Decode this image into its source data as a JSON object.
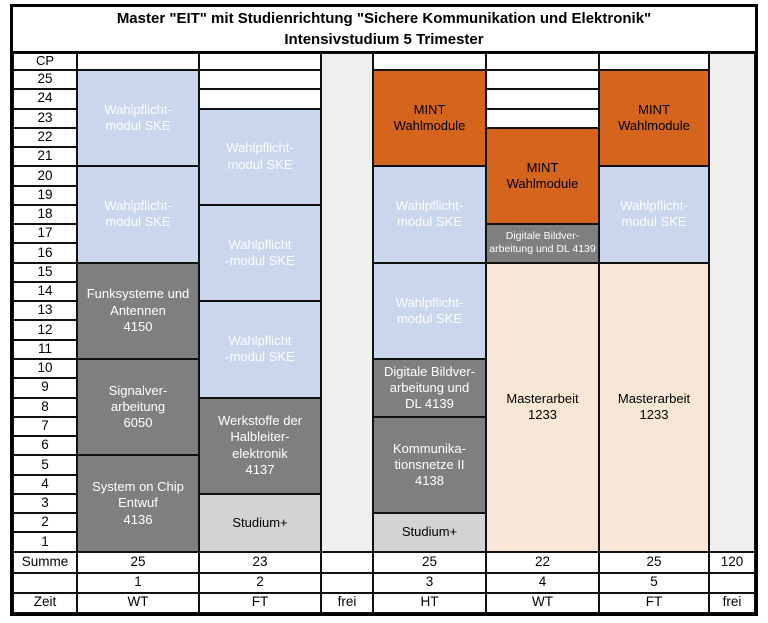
{
  "title": {
    "line1": "Master \"EIT\" mit Studienrichtung \"Sichere Kommunikation und Elektronik\"",
    "line2": "Intensivstudium 5 Trimester"
  },
  "axis": {
    "cp_label": "CP",
    "cp_ticks": [
      "25",
      "24",
      "23",
      "22",
      "21",
      "20",
      "19",
      "18",
      "17",
      "16",
      "15",
      "14",
      "13",
      "12",
      "11",
      "10",
      "9",
      "8",
      "7",
      "6",
      "5",
      "4",
      "3",
      "2",
      "1"
    ]
  },
  "footer_labels": {
    "summe": "Summe",
    "zeit": "Zeit"
  },
  "colors": {
    "orange": "#D5641C",
    "blue": "#C9D6EC",
    "darkgray": "#7F7F7F",
    "lightgray": "#D3D3D3",
    "cream": "#F8E7D6",
    "frei": "#EFEFED"
  },
  "chart_data": {
    "type": "bar",
    "subtype": "stacked-curriculum-schedule",
    "title": "Master \"EIT\" mit Studienrichtung \"Sichere Kommunikation und Elektronik\" — Intensivstudium 5 Trimester",
    "ylabel": "CP",
    "ylim": [
      0,
      25
    ],
    "grand_total_cp": "120",
    "columns": [
      {
        "trimester": "1",
        "zeit": "WT",
        "summe": "25",
        "empty_top": 0,
        "blocks": [
          {
            "lines": [
              "Wahlpflicht-",
              "modul SKE"
            ],
            "cp": 5,
            "color": "blue",
            "small": false
          },
          {
            "lines": [
              "Wahlpflicht-",
              "modul SKE"
            ],
            "cp": 5,
            "color": "blue",
            "small": false
          },
          {
            "lines": [
              "Funksysteme und",
              "Antennen",
              "4150"
            ],
            "cp": 5,
            "color": "darkgray",
            "small": false
          },
          {
            "lines": [
              "Signalver-",
              "arbeitung",
              "6050"
            ],
            "cp": 5,
            "color": "darkgray",
            "small": false
          },
          {
            "lines": [
              "System on Chip",
              "Entwuf",
              "4136"
            ],
            "cp": 5,
            "color": "darkgray",
            "small": false
          }
        ]
      },
      {
        "trimester": "2",
        "zeit": "FT",
        "summe": "23",
        "empty_top": 2,
        "blocks": [
          {
            "lines": [
              "Wahlpflicht-",
              "modul SKE"
            ],
            "cp": 5,
            "color": "blue",
            "small": false
          },
          {
            "lines": [
              "Wahlpflicht",
              "-modul SKE"
            ],
            "cp": 5,
            "color": "blue",
            "small": false
          },
          {
            "lines": [
              "Wahlpflicht",
              "-modul SKE"
            ],
            "cp": 5,
            "color": "blue",
            "small": false
          },
          {
            "lines": [
              "Werkstoffe der",
              "Halbleiter-",
              "elektronik",
              "4137"
            ],
            "cp": 5,
            "color": "darkgray",
            "small": false
          },
          {
            "lines": [
              "Studium+"
            ],
            "cp": 3,
            "color": "lightgray",
            "small": false
          }
        ]
      },
      {
        "trimester": "3",
        "zeit": "HT",
        "summe": "25",
        "empty_top": 0,
        "blocks": [
          {
            "lines": [
              "MINT",
              "Wahlmodule"
            ],
            "cp": 5,
            "color": "orange",
            "small": false
          },
          {
            "lines": [
              "Wahlpflicht-",
              "modul SKE"
            ],
            "cp": 5,
            "color": "blue",
            "small": false
          },
          {
            "lines": [
              "Wahlpflicht-",
              "modul SKE"
            ],
            "cp": 5,
            "color": "blue",
            "small": false
          },
          {
            "lines": [
              "Digitale Bildver-",
              "arbeitung und",
              "DL 4139"
            ],
            "cp": 3,
            "color": "darkgray",
            "small": false
          },
          {
            "lines": [
              "Kommunika-",
              "tionsnetze II",
              "4138"
            ],
            "cp": 5,
            "color": "darkgray",
            "small": false
          },
          {
            "lines": [
              "Studium+"
            ],
            "cp": 2,
            "color": "lightgray",
            "small": false
          }
        ]
      },
      {
        "trimester": "4",
        "zeit": "WT",
        "summe": "22",
        "empty_top": 3,
        "blocks": [
          {
            "lines": [
              "MINT",
              "Wahlmodule"
            ],
            "cp": 5,
            "color": "orange",
            "small": false
          },
          {
            "lines": [
              "Digitale Bildver-",
              "arbeitung und DL 4139"
            ],
            "cp": 2,
            "color": "darkgray",
            "small": true
          },
          {
            "lines": [
              "Masterarbeit",
              "1233"
            ],
            "cp": 15,
            "color": "cream",
            "small": false
          }
        ]
      },
      {
        "trimester": "5",
        "zeit": "FT",
        "summe": "25",
        "empty_top": 0,
        "blocks": [
          {
            "lines": [
              "MINT",
              "Wahlmodule"
            ],
            "cp": 5,
            "color": "orange",
            "small": false
          },
          {
            "lines": [
              "Wahlpflicht-",
              "modul SKE"
            ],
            "cp": 5,
            "color": "blue",
            "small": false
          },
          {
            "lines": [
              "Masterarbeit",
              "1233"
            ],
            "cp": 15,
            "color": "cream",
            "small": false
          }
        ]
      }
    ],
    "free_columns": [
      {
        "summe": "",
        "trimester": "",
        "zeit": "frei"
      },
      {
        "summe": "120",
        "trimester": "",
        "zeit": "frei"
      }
    ]
  }
}
